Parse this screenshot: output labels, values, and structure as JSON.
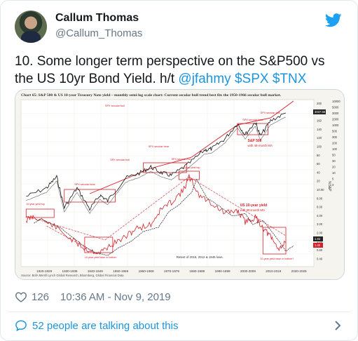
{
  "tweet": {
    "author_name": "Callum Thomas",
    "author_handle": "@Callum_Thomas",
    "text_main": "10. Some longer term perspective on the S&P500 vs the US 10yr Bond Yield.  h/t ",
    "mention": "@jfahmy",
    "cashtag_spx": "$SPX",
    "cashtag_tnx": "$TNX",
    "like_count": "126",
    "timestamp": "10:36 AM - Nov 9, 2019",
    "talking": "52 people are talking about this"
  },
  "chart_data": {
    "type": "line",
    "title": "Chart 65: S&P 500 & US 10-year Treasury Note yield – monthly semi-log scale chart: Current secular bull trend best fits the 1950-1966 secular bull market.",
    "source": "Source: BofA Merrill Lynch Global Research, Bloomberg, Global Financial Data",
    "x_ticks": [
      "1920-1929",
      "1930-1939",
      "1940-1949",
      "1950-1959",
      "1960-1969",
      "1970-1979",
      "1980-1989",
      "1990-1999",
      "2000-2009",
      "2010-2019",
      "2020-2029"
    ],
    "spx_ticks": [
      "10000",
      "5000",
      "3000",
      "2000",
      "1000",
      "500",
      "300",
      "200",
      "100",
      "50",
      "30",
      "20",
      "10",
      "5",
      "3"
    ],
    "yield_ticks": [
      "200",
      "180",
      "160",
      "140",
      "120",
      "100",
      "80",
      "60",
      "40",
      "20",
      "10.00",
      "8.00",
      "6.00",
      "4.00",
      "3.00",
      "2.00",
      "1.00",
      "0.60",
      "0.40"
    ],
    "y_axis_label": "%S&P",
    "spx_last_label": "3037.56",
    "yield_last_labels": [
      "1.94",
      "1.40"
    ],
    "annotations": [
      "SPX secular bull",
      "SPX secular bear",
      "SPX secular bull",
      "SPX secular bear",
      "SPX secular bull",
      "SPX secular bear",
      "SPX secular bull"
    ],
    "yield_top_labels": [
      "10-year yield top",
      "10-year yield top"
    ],
    "yield_bottom_labels": [
      "10-year yield base or bottom",
      "10-year yield base or bottom?"
    ],
    "spx_series_label": [
      "S&P 500",
      "with 48-month MA"
    ],
    "yield_series_label": [
      "US 10-year yield",
      "with 96-month MA"
    ],
    "retest_note": "Retest of 2016, 2012 & 1945 lows.",
    "series_colors": {
      "spx": "#111111",
      "spx_ma": "#555555",
      "yield": "#d4202a",
      "trend": "#d4202a"
    }
  }
}
